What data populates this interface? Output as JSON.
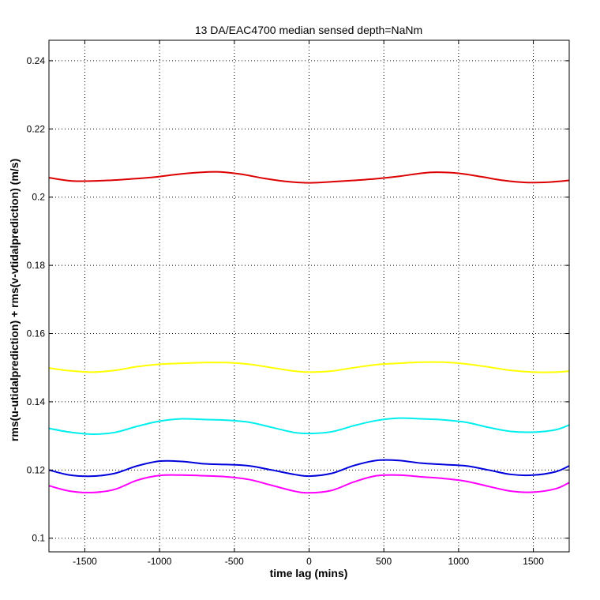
{
  "chart_data": {
    "type": "line",
    "title": "13 DA/EAC4700 median sensed depth=NaNm",
    "xlabel": "time lag (mins)",
    "ylabel": "rms(u-utidalprediction) + rms(v-vtidalprediction) (m/s)",
    "xlim": [
      -1740,
      1740
    ],
    "ylim": [
      0.096,
      0.246
    ],
    "xticks": [
      -1500,
      -1000,
      -500,
      0,
      500,
      1000,
      1500
    ],
    "yticks": [
      0.1,
      0.12,
      0.14,
      0.16,
      0.18,
      0.2,
      0.22,
      0.24
    ],
    "grid": true,
    "series": [
      {
        "color": "#dd0000",
        "x": [
          -1740,
          -1600,
          -1500,
          -1350,
          -1200,
          -1050,
          -900,
          -750,
          -600,
          -450,
          -300,
          -150,
          0,
          150,
          300,
          450,
          600,
          750,
          850,
          1000,
          1150,
          1300,
          1450,
          1600,
          1740
        ],
        "y": [
          0.2057,
          0.2048,
          0.2047,
          0.2049,
          0.2053,
          0.2058,
          0.2066,
          0.2072,
          0.2074,
          0.2067,
          0.2055,
          0.2046,
          0.2042,
          0.2045,
          0.2049,
          0.2054,
          0.2061,
          0.207,
          0.2073,
          0.207,
          0.206,
          0.2049,
          0.2043,
          0.2044,
          0.2049
        ]
      },
      {
        "color": "#ffff00",
        "x": [
          -1740,
          -1600,
          -1450,
          -1300,
          -1150,
          -1000,
          -850,
          -700,
          -550,
          -400,
          -250,
          -100,
          0,
          150,
          300,
          450,
          600,
          750,
          900,
          1050,
          1200,
          1350,
          1500,
          1650,
          1740
        ],
        "y": [
          0.1499,
          0.1491,
          0.1487,
          0.1492,
          0.1503,
          0.151,
          0.1513,
          0.1515,
          0.1515,
          0.151,
          0.15,
          0.149,
          0.1487,
          0.149,
          0.15,
          0.1509,
          0.1513,
          0.1516,
          0.1516,
          0.1511,
          0.1502,
          0.1492,
          0.1487,
          0.1487,
          0.149
        ]
      },
      {
        "color": "#00eeee",
        "x": [
          -1740,
          -1600,
          -1450,
          -1300,
          -1150,
          -1000,
          -850,
          -700,
          -550,
          -400,
          -250,
          -100,
          0,
          150,
          300,
          450,
          600,
          750,
          900,
          1050,
          1200,
          1350,
          1500,
          1650,
          1740
        ],
        "y": [
          0.1322,
          0.1311,
          0.1305,
          0.131,
          0.1328,
          0.1343,
          0.135,
          0.1348,
          0.1346,
          0.134,
          0.1325,
          0.131,
          0.1307,
          0.1312,
          0.133,
          0.1345,
          0.1352,
          0.135,
          0.1347,
          0.134,
          0.1325,
          0.1313,
          0.1311,
          0.1318,
          0.1332
        ]
      },
      {
        "color": "#0000dd",
        "x": [
          -1740,
          -1600,
          -1450,
          -1300,
          -1150,
          -1000,
          -850,
          -700,
          -550,
          -400,
          -250,
          -100,
          0,
          150,
          300,
          450,
          600,
          750,
          900,
          1050,
          1200,
          1350,
          1500,
          1650,
          1740
        ],
        "y": [
          0.12,
          0.1185,
          0.1182,
          0.119,
          0.1212,
          0.1226,
          0.1225,
          0.1218,
          0.1216,
          0.1212,
          0.12,
          0.1187,
          0.1182,
          0.119,
          0.1213,
          0.1228,
          0.1228,
          0.122,
          0.1216,
          0.1212,
          0.12,
          0.1187,
          0.1185,
          0.1195,
          0.1212
        ]
      },
      {
        "color": "#ff00ff",
        "x": [
          -1740,
          -1600,
          -1450,
          -1300,
          -1150,
          -1000,
          -850,
          -700,
          -550,
          -400,
          -250,
          -100,
          0,
          150,
          300,
          450,
          600,
          750,
          900,
          1050,
          1200,
          1350,
          1500,
          1650,
          1740
        ],
        "y": [
          0.1154,
          0.1138,
          0.1134,
          0.1143,
          0.117,
          0.1184,
          0.1185,
          0.1183,
          0.118,
          0.1172,
          0.1155,
          0.1138,
          0.1133,
          0.114,
          0.1165,
          0.1183,
          0.1185,
          0.118,
          0.1175,
          0.1167,
          0.1152,
          0.1138,
          0.1135,
          0.1145,
          0.1163
        ]
      }
    ]
  }
}
